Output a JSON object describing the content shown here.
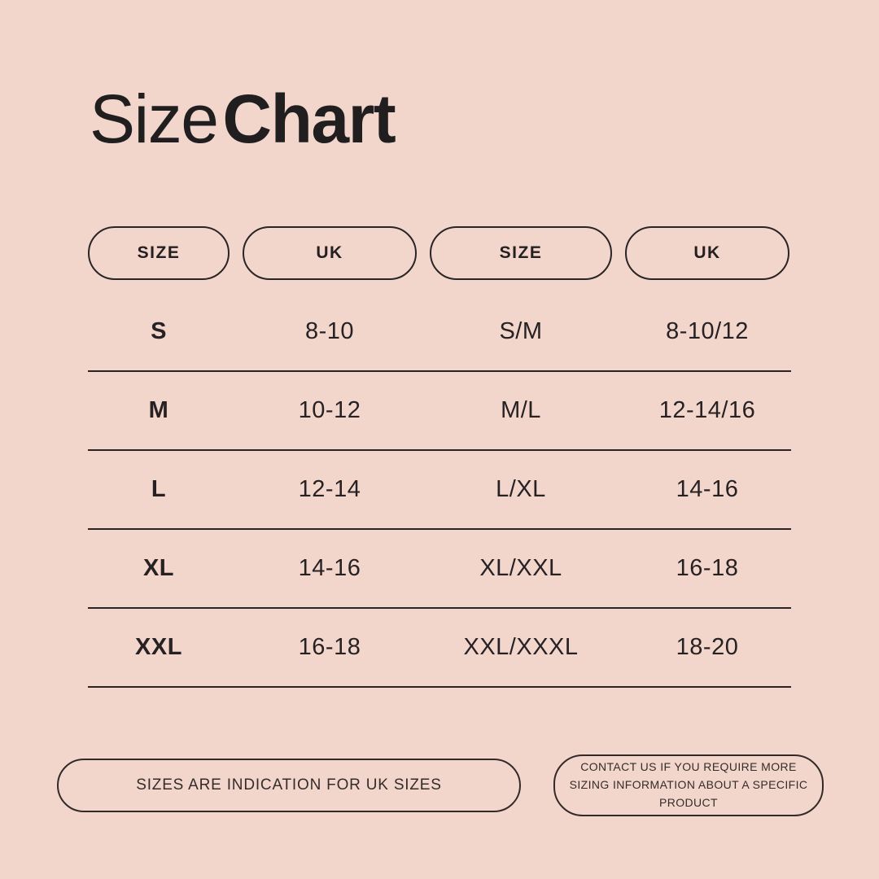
{
  "page": {
    "background_color": "#f2d6cc",
    "text_color": "#241f20",
    "border_color": "#2b2425"
  },
  "title": {
    "regular": "Size",
    "bold": "Chart"
  },
  "table": {
    "headers": [
      "SIZE",
      "UK",
      "SIZE",
      "UK"
    ],
    "rows": [
      [
        "S",
        "8-10",
        "S/M",
        "8-10/12"
      ],
      [
        "M",
        "10-12",
        "M/L",
        "12-14/16"
      ],
      [
        "L",
        "12-14",
        "L/XL",
        "14-16"
      ],
      [
        "XL",
        "14-16",
        "XL/XXL",
        "16-18"
      ],
      [
        "XXL",
        "16-18",
        "XXL/XXXL",
        "18-20"
      ]
    ]
  },
  "footer": {
    "left_note": "SIZES ARE INDICATION FOR UK SIZES",
    "right_note": "CONTACT US IF YOU REQUIRE MORE SIZING INFORMATION ABOUT A SPECIFIC PRODUCT"
  }
}
